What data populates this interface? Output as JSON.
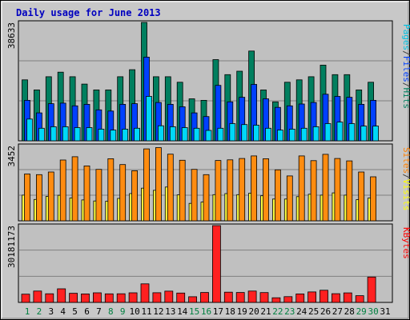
{
  "chart_data": {
    "type": "bar",
    "title": "Daily usage for June 2013",
    "categories": [
      "1",
      "2",
      "3",
      "4",
      "5",
      "6",
      "7",
      "8",
      "9",
      "10",
      "11",
      "12",
      "13",
      "14",
      "15",
      "16",
      "17",
      "18",
      "19",
      "20",
      "21",
      "22",
      "23",
      "24",
      "25",
      "26",
      "27",
      "28",
      "29",
      "30",
      "31"
    ],
    "weekend_days": [
      "1",
      "2",
      "8",
      "9",
      "15",
      "16",
      "22",
      "23",
      "29",
      "30"
    ],
    "panels": [
      {
        "name": "hits-files-pages",
        "y_max_label": "38633",
        "ylim": [
          0,
          38633
        ],
        "legend": [
          {
            "text": "Pages",
            "color": "#00c0e0"
          },
          {
            "text": "/",
            "color": "#404040"
          },
          {
            "text": "Files",
            "color": "#0040ff"
          },
          {
            "text": "/",
            "color": "#404040"
          },
          {
            "text": "Hits",
            "color": "#008060"
          }
        ],
        "series": [
          {
            "name": "Hits",
            "color": "#007f5f",
            "offset": -3,
            "width": 7,
            "values": [
              19900,
              16600,
              20900,
              22400,
              20900,
              18500,
              16600,
              16600,
              20900,
              23200,
              38633,
              20900,
              20900,
              19100,
              13700,
              13200,
              26500,
              21600,
              22700,
              29300,
              16600,
              12700,
              19100,
              19900,
              20900,
              24700,
              21600,
              21600,
              16600,
              19100,
              0
            ]
          },
          {
            "name": "Files",
            "color": "#0040ff",
            "offset": 0,
            "width": 7,
            "values": [
              13200,
              9100,
              12100,
              12300,
              11400,
              11900,
              10100,
              9700,
              11900,
              12100,
              27300,
              12500,
              11900,
              11100,
              9100,
              7900,
              18100,
              12700,
              14200,
              18400,
              13700,
              10900,
              11400,
              12000,
              12500,
              15200,
              14500,
              14200,
              11900,
              13200,
              0
            ]
          },
          {
            "name": "Pages",
            "color": "#00d8f8",
            "offset": 3,
            "width": 7,
            "values": [
              7100,
              4100,
              4600,
              4600,
              4300,
              4300,
              3800,
              3500,
              3800,
              4100,
              14500,
              4900,
              4600,
              4300,
              4100,
              3400,
              4100,
              5600,
              5300,
              5100,
              4100,
              3500,
              3800,
              4100,
              4600,
              5600,
              6100,
              5600,
              4800,
              4800,
              0
            ]
          }
        ]
      },
      {
        "name": "visits-sites",
        "y_max_label": "3452",
        "ylim": [
          0,
          3452
        ],
        "legend": [
          {
            "text": "Sites",
            "color": "#ff8000"
          },
          {
            "text": "/",
            "color": "#404040"
          },
          {
            "text": "Visits",
            "color": "#ffff00"
          }
        ],
        "series": [
          {
            "name": "Visits",
            "color": "#ffff40",
            "offset": -3,
            "width": 7,
            "values": [
              1180,
              980,
              1120,
              1170,
              1050,
              960,
              910,
              900,
              1030,
              1250,
              1500,
              1400,
              1550,
              1190,
              800,
              860,
              1200,
              1250,
              1200,
              1270,
              1150,
              1000,
              1000,
              1110,
              1220,
              1180,
              1280,
              1180,
              970,
              1050,
              0
            ]
          },
          {
            "name": "Sites",
            "color": "#ff8c10",
            "offset": 0,
            "width": 7,
            "values": [
              2150,
              2120,
              2240,
              2790,
              2940,
              2520,
              2360,
              2850,
              2580,
              2300,
              3300,
              3361,
              3060,
              2780,
              2360,
              2120,
              2770,
              2800,
              2860,
              2980,
              2850,
              2340,
              2060,
              2980,
              2760,
              3050,
              2860,
              2750,
              2240,
              2020,
              0
            ]
          }
        ]
      },
      {
        "name": "kbytes",
        "y_max_label": "30181173",
        "ylim": [
          0,
          30181173
        ],
        "legend": [
          {
            "text": "KBytes",
            "color": "#ff0000"
          }
        ],
        "series": [
          {
            "name": "KBytes",
            "color": "#ff2020",
            "offset": -2,
            "width": 10,
            "values": [
              3250000,
              4480000,
              3380000,
              5360000,
              3580000,
              3330000,
              3780000,
              3350000,
              3410000,
              3780000,
              7300000,
              3790000,
              4440000,
              3690000,
              2230000,
              3910000,
              30181173,
              4030000,
              3910000,
              4480000,
              3870000,
              1830000,
              2270000,
              3340000,
              4130000,
              4770000,
              3440000,
              3730000,
              2650000,
              9960000,
              0
            ]
          }
        ]
      }
    ]
  }
}
